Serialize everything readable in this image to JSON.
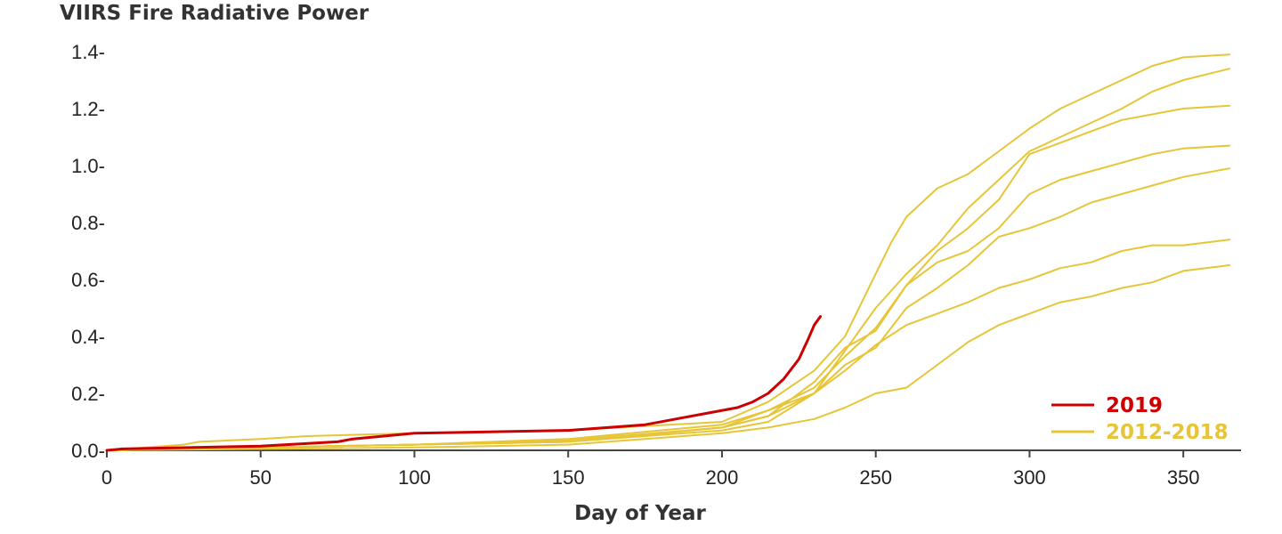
{
  "chart_data": {
    "type": "line",
    "title": "VIIRS Fire Radiative Power",
    "xlabel": "Day of Year",
    "ylabel": "",
    "xlim": [
      0,
      365
    ],
    "ylim": [
      0,
      1.4
    ],
    "x_ticks": [
      0,
      50,
      100,
      150,
      200,
      250,
      300,
      350
    ],
    "x_tick_labels": [
      "0",
      "50",
      "100",
      "150",
      "200",
      "250",
      "300",
      "350"
    ],
    "y_ticks": [
      0,
      0.2,
      0.4,
      0.6,
      0.8,
      1.0,
      1.2,
      1.4
    ],
    "y_tick_labels": [
      "0.0-",
      "0.2-",
      "0.4-",
      "0.6-",
      "0.8-",
      "1.0-",
      "1.2-",
      "1.4-"
    ],
    "grid": false,
    "legend_position": "bottom-right",
    "legend": [
      {
        "label": "2019",
        "color": "#cc0000"
      },
      {
        "label": "2012-2018",
        "color": "#e6c638"
      }
    ],
    "series": [
      {
        "group": "2012-2018",
        "color": "#e6c638",
        "x": [
          0,
          25,
          30,
          50,
          65,
          100,
          150,
          200,
          215,
          230,
          240,
          250,
          255,
          260,
          270,
          280,
          290,
          300,
          310,
          320,
          330,
          340,
          350,
          365
        ],
        "y": [
          0,
          0.02,
          0.03,
          0.04,
          0.05,
          0.06,
          0.07,
          0.1,
          0.17,
          0.28,
          0.4,
          0.62,
          0.73,
          0.82,
          0.92,
          0.97,
          1.05,
          1.13,
          1.2,
          1.25,
          1.3,
          1.35,
          1.38,
          1.39
        ]
      },
      {
        "group": "2012-2018",
        "color": "#e6c638",
        "x": [
          0,
          50,
          100,
          150,
          200,
          215,
          230,
          240,
          250,
          260,
          270,
          280,
          290,
          300,
          310,
          320,
          330,
          340,
          350,
          365
        ],
        "y": [
          0,
          0.01,
          0.02,
          0.03,
          0.08,
          0.12,
          0.2,
          0.35,
          0.5,
          0.62,
          0.72,
          0.85,
          0.95,
          1.05,
          1.1,
          1.15,
          1.2,
          1.26,
          1.3,
          1.34
        ]
      },
      {
        "group": "2012-2018",
        "color": "#e6c638",
        "x": [
          0,
          50,
          100,
          150,
          200,
          215,
          230,
          240,
          250,
          260,
          270,
          280,
          290,
          300,
          310,
          320,
          330,
          340,
          350,
          365
        ],
        "y": [
          0,
          0.01,
          0.02,
          0.04,
          0.09,
          0.14,
          0.22,
          0.33,
          0.43,
          0.58,
          0.7,
          0.78,
          0.88,
          1.04,
          1.08,
          1.12,
          1.16,
          1.18,
          1.2,
          1.21
        ]
      },
      {
        "group": "2012-2018",
        "color": "#e6c638",
        "x": [
          0,
          50,
          100,
          150,
          200,
          215,
          230,
          240,
          250,
          260,
          270,
          280,
          290,
          300,
          310,
          320,
          330,
          340,
          350,
          365
        ],
        "y": [
          0,
          0.01,
          0.02,
          0.035,
          0.08,
          0.12,
          0.24,
          0.36,
          0.42,
          0.58,
          0.66,
          0.7,
          0.78,
          0.9,
          0.95,
          0.98,
          1.01,
          1.04,
          1.06,
          1.07
        ]
      },
      {
        "group": "2012-2018",
        "color": "#e6c638",
        "x": [
          0,
          50,
          100,
          150,
          200,
          215,
          230,
          240,
          250,
          260,
          270,
          280,
          290,
          300,
          310,
          320,
          330,
          340,
          350,
          365
        ],
        "y": [
          0,
          0.01,
          0.02,
          0.03,
          0.07,
          0.1,
          0.2,
          0.3,
          0.36,
          0.5,
          0.57,
          0.65,
          0.75,
          0.78,
          0.82,
          0.87,
          0.9,
          0.93,
          0.96,
          0.99
        ]
      },
      {
        "group": "2012-2018",
        "color": "#e6c638",
        "x": [
          0,
          50,
          100,
          150,
          200,
          215,
          230,
          240,
          250,
          260,
          270,
          280,
          290,
          300,
          310,
          320,
          330,
          340,
          350,
          365
        ],
        "y": [
          0,
          0.01,
          0.02,
          0.03,
          0.08,
          0.14,
          0.2,
          0.28,
          0.37,
          0.44,
          0.48,
          0.52,
          0.57,
          0.6,
          0.64,
          0.66,
          0.7,
          0.72,
          0.72,
          0.74
        ]
      },
      {
        "group": "2012-2018",
        "color": "#e6c638",
        "x": [
          0,
          50,
          100,
          150,
          200,
          215,
          230,
          240,
          250,
          260,
          270,
          280,
          290,
          300,
          310,
          320,
          330,
          340,
          350,
          365
        ],
        "y": [
          0,
          0.005,
          0.01,
          0.02,
          0.06,
          0.08,
          0.11,
          0.15,
          0.2,
          0.22,
          0.3,
          0.38,
          0.44,
          0.48,
          0.52,
          0.54,
          0.57,
          0.59,
          0.63,
          0.65
        ]
      },
      {
        "group": "2019",
        "color": "#cc0000",
        "x": [
          0,
          5,
          50,
          75,
          80,
          100,
          150,
          175,
          185,
          195,
          205,
          210,
          215,
          220,
          225,
          228,
          230,
          232
        ],
        "y": [
          0,
          0.005,
          0.015,
          0.03,
          0.04,
          0.06,
          0.07,
          0.09,
          0.11,
          0.13,
          0.15,
          0.17,
          0.2,
          0.25,
          0.32,
          0.39,
          0.44,
          0.47
        ]
      }
    ]
  }
}
